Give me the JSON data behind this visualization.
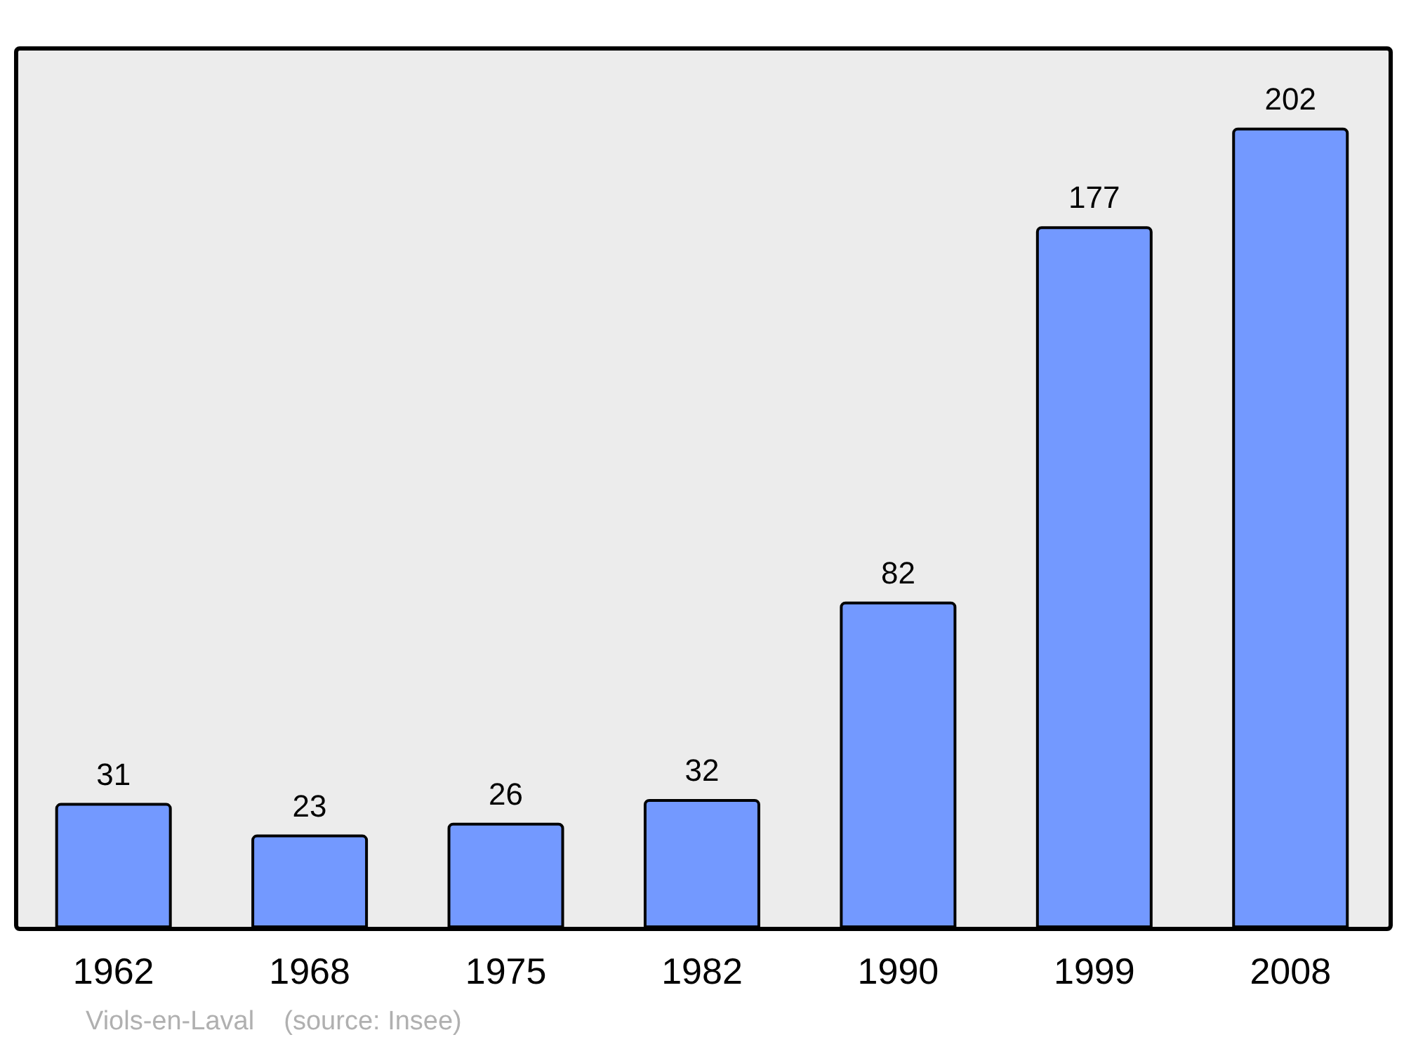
{
  "chart_data": {
    "type": "bar",
    "categories": [
      "1962",
      "1968",
      "1975",
      "1982",
      "1990",
      "1999",
      "2008"
    ],
    "values": [
      31,
      23,
      26,
      32,
      82,
      177,
      202
    ],
    "color": "#7399ff",
    "data_labels": true,
    "annotations": [
      "Viols-en-Laval    (source: Insee)"
    ]
  }
}
